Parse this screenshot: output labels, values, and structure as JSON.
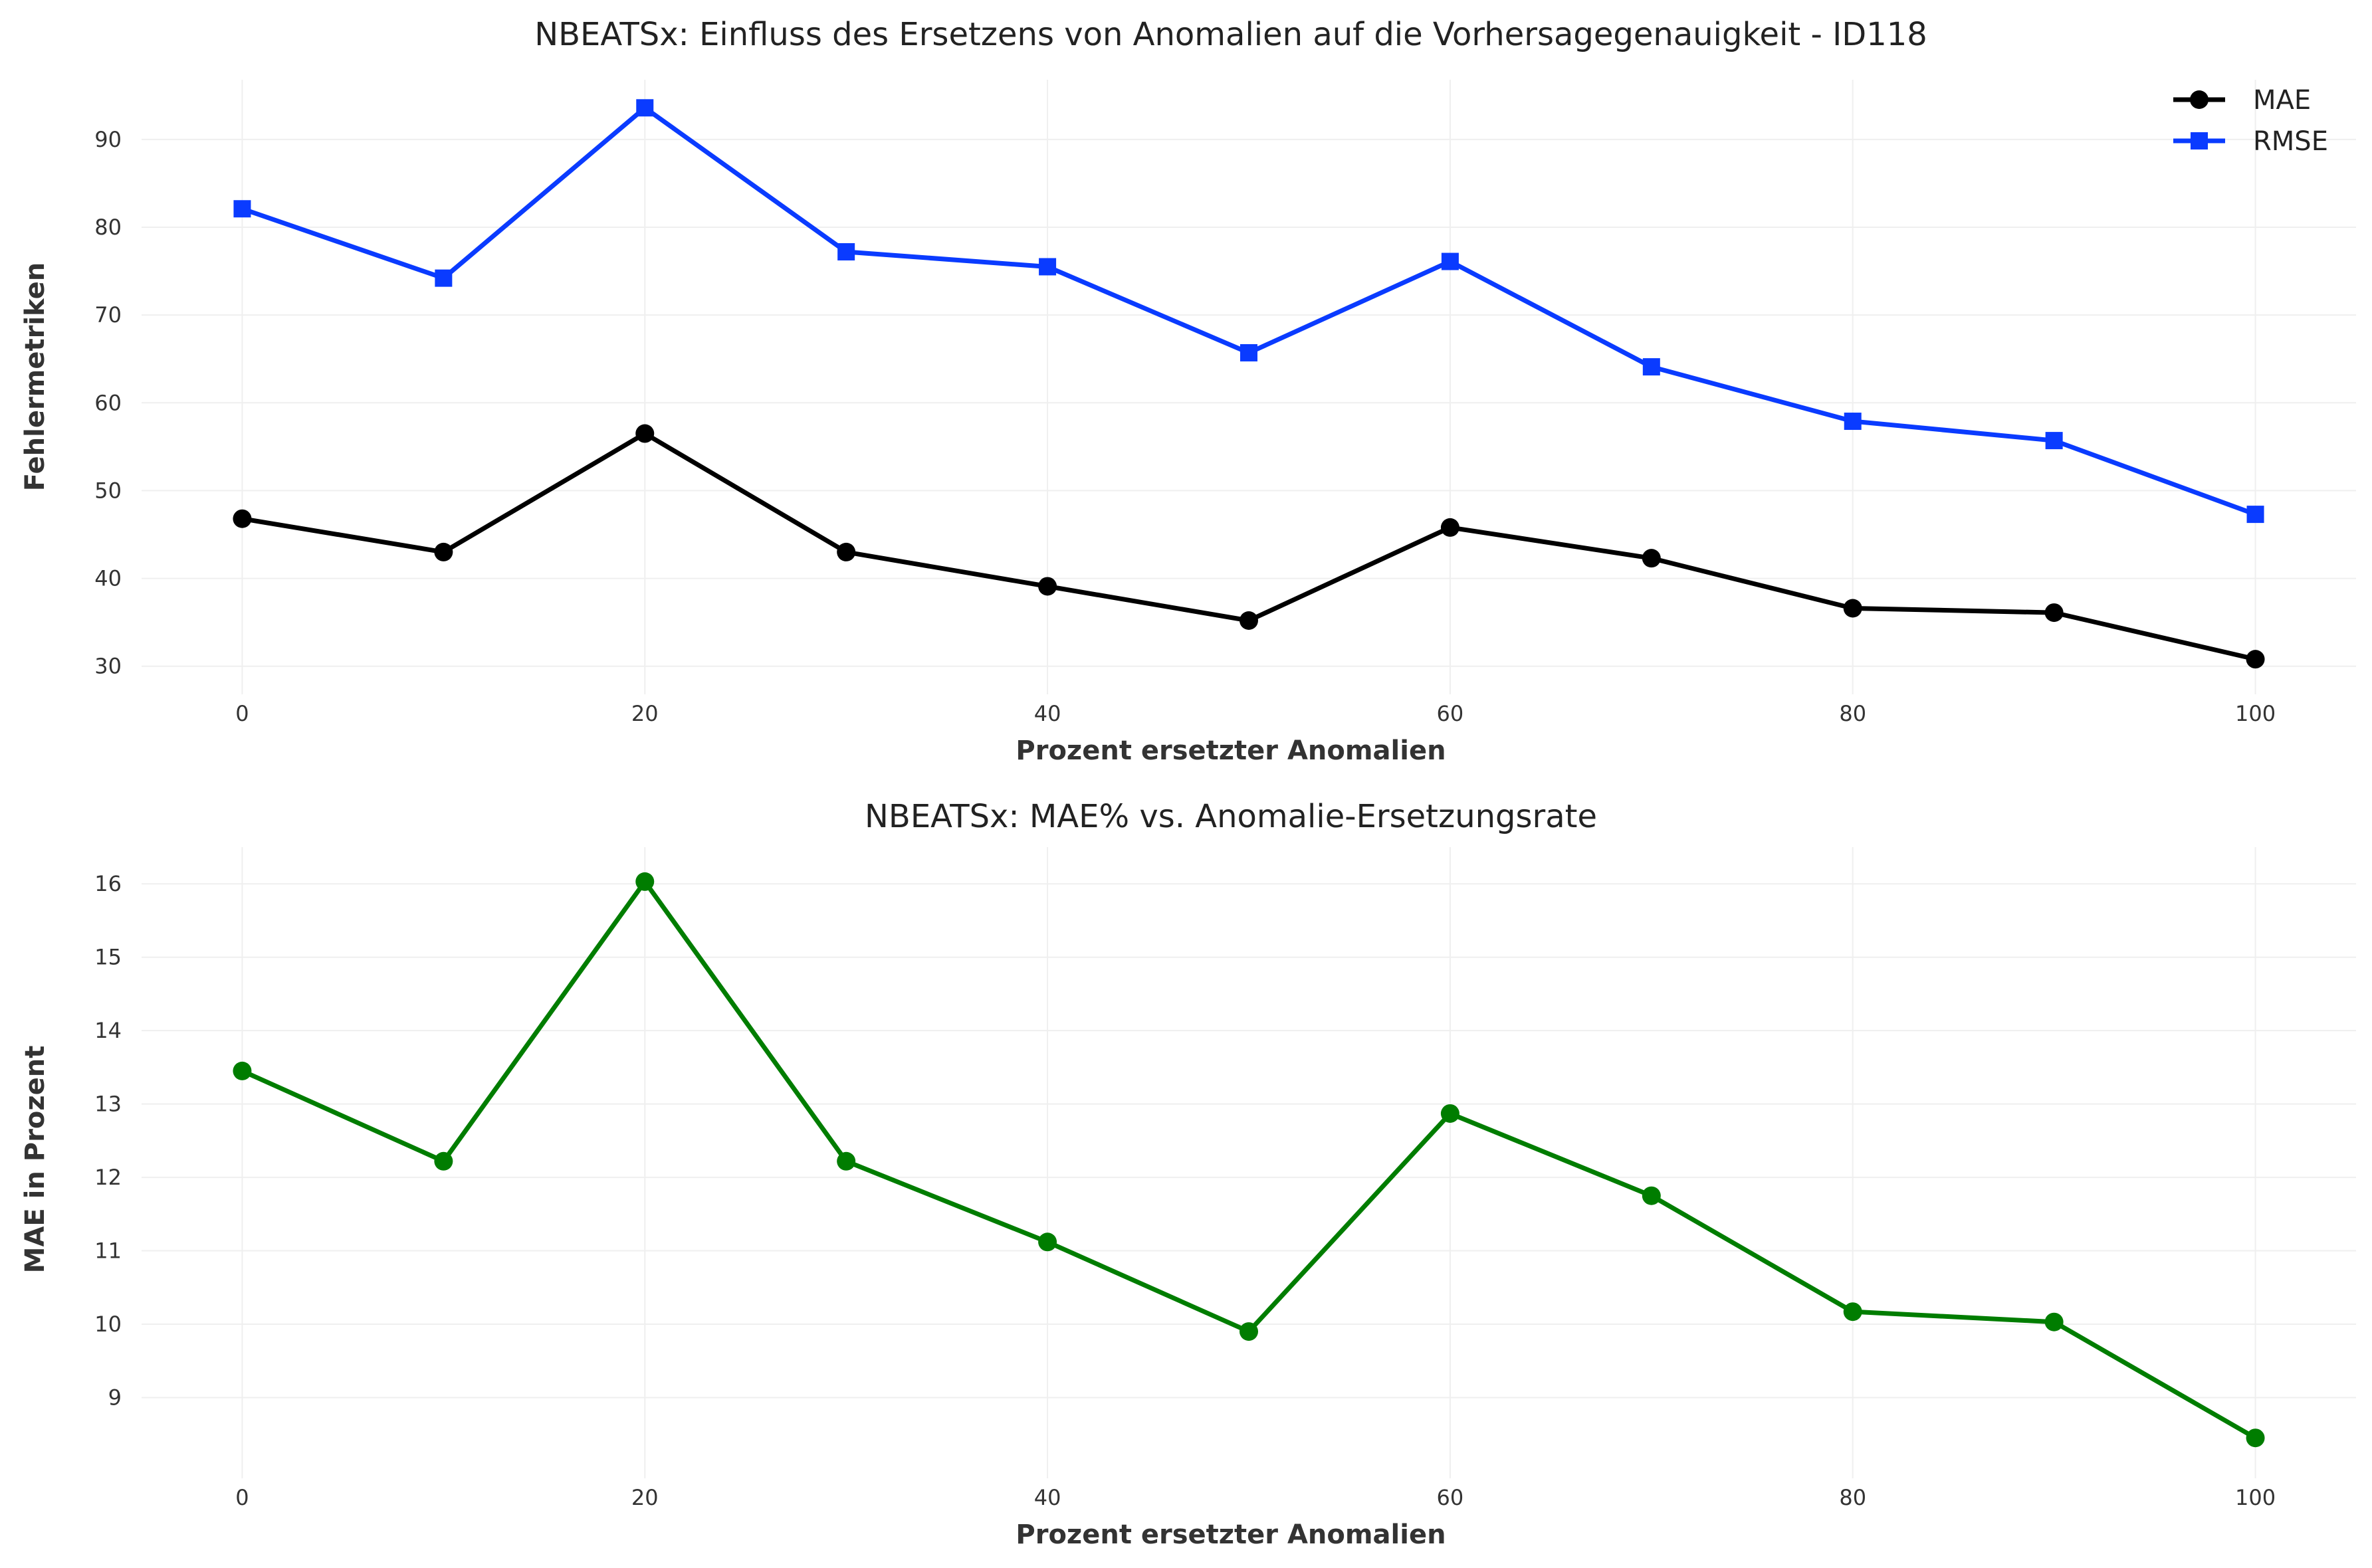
{
  "chart_data": [
    {
      "type": "line",
      "title": "NBEATSx: Einfluss des Ersetzens von Anomalien auf die Vorhersagegenauigkeit - ID118",
      "xlabel": "Prozent ersetzter Anomalien",
      "ylabel": "Fehlermetriken",
      "x": [
        0,
        10,
        20,
        30,
        40,
        50,
        60,
        70,
        80,
        90,
        100
      ],
      "xticks": [
        0,
        20,
        40,
        60,
        80,
        100
      ],
      "yticks": [
        30,
        40,
        50,
        60,
        70,
        80,
        90
      ],
      "xlim": [
        -5,
        105
      ],
      "ylim": [
        26.8,
        96.8
      ],
      "grid": true,
      "legend": "top-right",
      "series": [
        {
          "name": "MAE",
          "marker": "circle",
          "color": "#000000",
          "values": [
            46.8,
            43.0,
            56.5,
            43.0,
            39.1,
            35.2,
            45.8,
            42.3,
            36.6,
            36.1,
            30.8
          ]
        },
        {
          "name": "RMSE",
          "marker": "square",
          "color": "#0a3bff",
          "values": [
            82.1,
            74.2,
            93.6,
            77.2,
            75.5,
            65.7,
            76.1,
            64.1,
            57.9,
            55.7,
            47.3
          ]
        }
      ]
    },
    {
      "type": "line",
      "title": "NBEATSx: MAE% vs. Anomalie-Ersetzungsrate",
      "xlabel": "Prozent ersetzter Anomalien",
      "ylabel": "MAE in Prozent",
      "x": [
        0,
        10,
        20,
        30,
        40,
        50,
        60,
        70,
        80,
        90,
        100
      ],
      "xticks": [
        0,
        20,
        40,
        60,
        80,
        100
      ],
      "yticks": [
        9,
        10,
        11,
        12,
        13,
        14,
        15,
        16
      ],
      "xlim": [
        -5,
        105
      ],
      "ylim": [
        7.9,
        16.5
      ],
      "grid": true,
      "legend": "none",
      "series": [
        {
          "marker": "circle",
          "color": "#007d00",
          "values": [
            13.45,
            12.22,
            16.03,
            12.22,
            11.12,
            9.9,
            12.87,
            11.75,
            10.17,
            10.03,
            8.45
          ]
        }
      ]
    }
  ]
}
